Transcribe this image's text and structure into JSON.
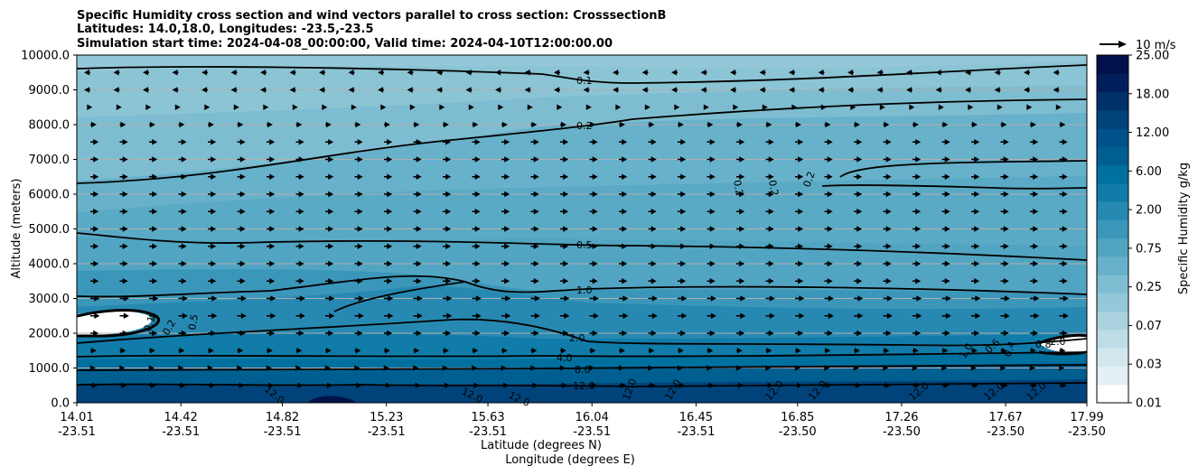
{
  "chart_data": {
    "type": "heatmap",
    "title_lines": [
      "Specific Humidity cross section and wind vectors parallel to cross section: CrosssectionB",
      "Latitudes: 14.0,18.0, Longitudes: -23.5,-23.5",
      "Simulation start time: 2024-04-08_00:00:00, Valid time: 2024-04-10T12:00:00.00"
    ],
    "ylabel": "Altitude (meters)",
    "xlabel_lines": [
      "Latitude (degrees N)",
      "Longitude (degrees E)"
    ],
    "y_ticks": [
      "0.0",
      "1000.0",
      "2000.0",
      "3000.0",
      "4000.0",
      "5000.0",
      "6000.0",
      "7000.0",
      "8000.0",
      "9000.0",
      "10000.0"
    ],
    "ylim": [
      0,
      10000
    ],
    "x_ticks": [
      {
        "lat": "14.01",
        "lon": "-23.51"
      },
      {
        "lat": "14.42",
        "lon": "-23.51"
      },
      {
        "lat": "14.82",
        "lon": "-23.51"
      },
      {
        "lat": "15.23",
        "lon": "-23.51"
      },
      {
        "lat": "15.63",
        "lon": "-23.51"
      },
      {
        "lat": "16.04",
        "lon": "-23.51"
      },
      {
        "lat": "16.45",
        "lon": "-23.51"
      },
      {
        "lat": "16.85",
        "lon": "-23.50"
      },
      {
        "lat": "17.26",
        "lon": "-23.50"
      },
      {
        "lat": "17.67",
        "lon": "-23.50"
      },
      {
        "lat": "17.99",
        "lon": "-23.50"
      }
    ],
    "xlim": [
      14.01,
      17.99
    ],
    "grid": "horizontal",
    "colorbar": {
      "label": "Specific Humidity g/kg",
      "tick_labels": [
        "0.01",
        "0.03",
        "0.07",
        "0.25",
        "0.75",
        "2.00",
        "6.00",
        "12.00",
        "18.00",
        "25.00"
      ],
      "levels": [
        0.01,
        0.02,
        0.03,
        0.05,
        0.07,
        0.1,
        0.25,
        0.5,
        0.75,
        1.0,
        2.0,
        4.0,
        6.0,
        9.0,
        12.0,
        15.0,
        18.0,
        22.0,
        25.0
      ],
      "colors": [
        "#ffffff",
        "#e4f0f3",
        "#d1e7ed",
        "#bedde6",
        "#aad3df",
        "#94c8d8",
        "#7ebdd1",
        "#68b1ca",
        "#52a5c2",
        "#3b97ba",
        "#2789b1",
        "#117ca9",
        "#00709f",
        "#005f90",
        "#00528a",
        "#00437a",
        "#003169",
        "#001f5b",
        "#001249"
      ]
    },
    "quiver_key": {
      "label": "10 m/s",
      "speed": 10
    },
    "contour_labels": [
      "0.1",
      "0.2",
      "0.2",
      "0.2",
      "0.2",
      "0.5",
      "1.0",
      "2.0",
      "4.0",
      "8.0",
      "12.0",
      "12.0",
      "12.0",
      "12.0",
      "12.0",
      "12.0",
      "12.0",
      "12.0",
      "12.0",
      "12.0",
      "12.0",
      "0.5",
      "0.1",
      "0.2",
      "1.0",
      "0.6",
      "0.4",
      "0.8",
      "2.0"
    ],
    "wind_profile": [
      {
        "z": 500,
        "u": 3.5
      },
      {
        "z": 1000,
        "u": 2.5
      },
      {
        "z": 1500,
        "u": 3
      },
      {
        "z": 2000,
        "u": 4
      },
      {
        "z": 2500,
        "u": 4.5
      },
      {
        "z": 3000,
        "u": 4.5
      },
      {
        "z": 3500,
        "u": 4
      },
      {
        "z": 4000,
        "u": 4
      },
      {
        "z": 4500,
        "u": 4
      },
      {
        "z": 5000,
        "u": 4
      },
      {
        "z": 5500,
        "u": 4
      },
      {
        "z": 6000,
        "u": 4
      },
      {
        "z": 6500,
        "u": 4
      },
      {
        "z": 7000,
        "u": 4
      },
      {
        "z": 7500,
        "u": 4
      },
      {
        "z": 8000,
        "u": 3
      },
      {
        "z": 8500,
        "u": 1
      },
      {
        "z": 9000,
        "u": -3
      },
      {
        "z": 9500,
        "u": -3
      }
    ]
  }
}
